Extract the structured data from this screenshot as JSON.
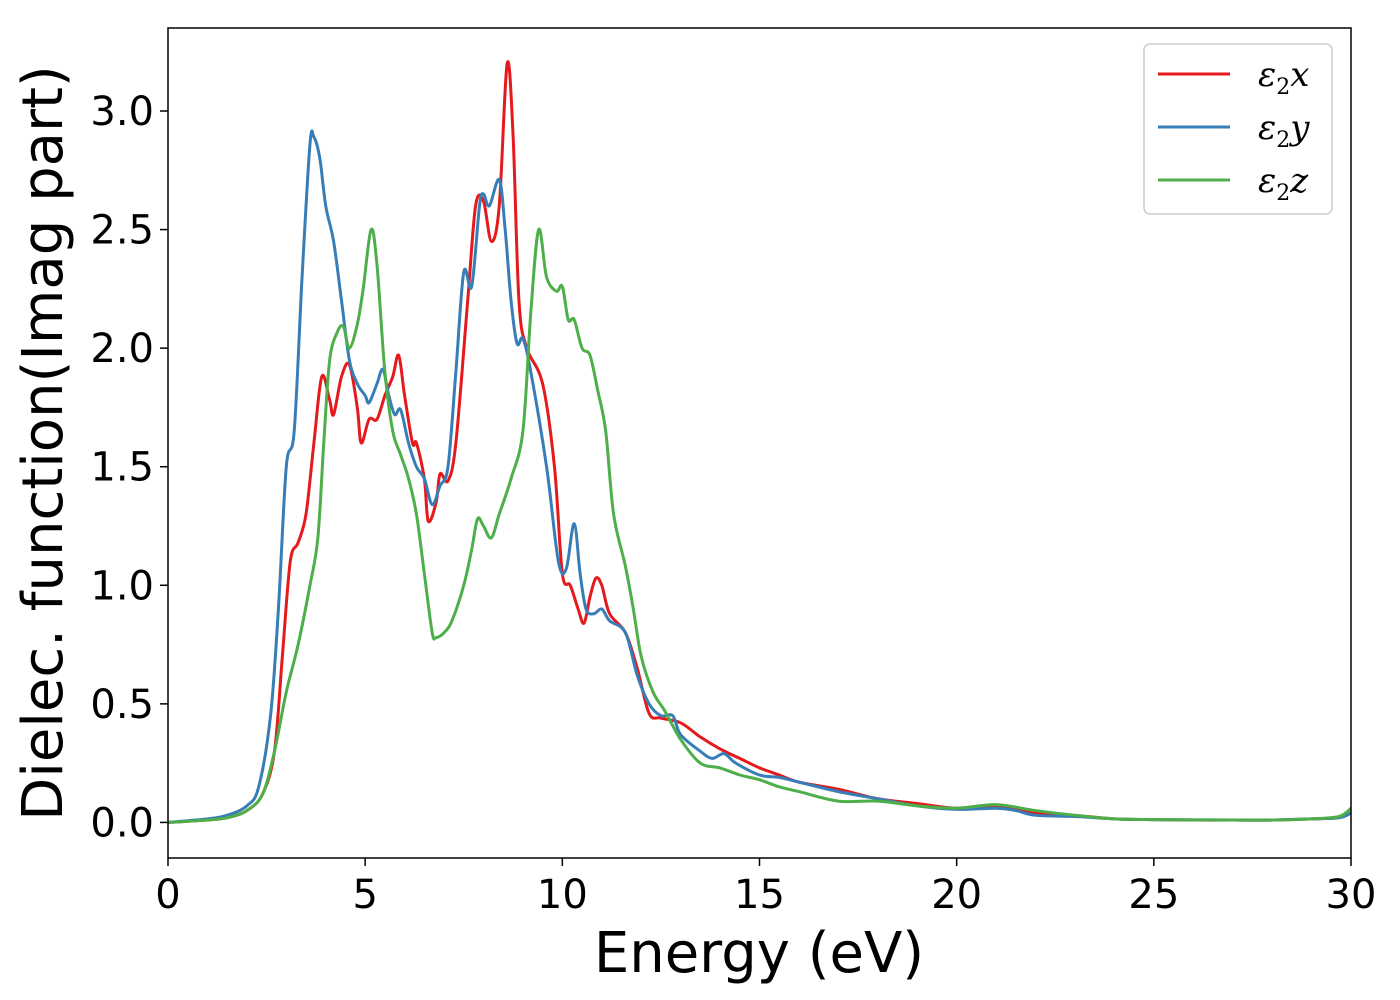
{
  "chart_data": {
    "type": "line",
    "title": "",
    "xlabel": "Energy (eV)",
    "ylabel": "Dielec. function(Imag part)",
    "xlim": [
      0,
      30
    ],
    "ylim": [
      -0.15,
      3.35
    ],
    "xticks": [
      0,
      5,
      10,
      15,
      20,
      25,
      30
    ],
    "xtick_labels": [
      "0",
      "5",
      "10",
      "15",
      "20",
      "25",
      "30"
    ],
    "yticks": [
      0.0,
      0.5,
      1.0,
      1.5,
      2.0,
      2.5,
      3.0
    ],
    "ytick_labels": [
      "0.0",
      "0.5",
      "1.0",
      "1.5",
      "2.0",
      "2.5",
      "3.0"
    ],
    "grid": false,
    "legend": "top-right",
    "series": [
      {
        "name": "ε2x",
        "symbol": "ε",
        "sub": "2",
        "axis": "x",
        "color": "#e41a1c",
        "points": [
          [
            0,
            0
          ],
          [
            1,
            0.01
          ],
          [
            1.5,
            0.02
          ],
          [
            2,
            0.05
          ],
          [
            2.4,
            0.12
          ],
          [
            2.7,
            0.3
          ],
          [
            2.9,
            0.7
          ],
          [
            3.1,
            1.1
          ],
          [
            3.3,
            1.18
          ],
          [
            3.5,
            1.3
          ],
          [
            3.7,
            1.6
          ],
          [
            3.9,
            1.88
          ],
          [
            4.1,
            1.78
          ],
          [
            4.2,
            1.72
          ],
          [
            4.4,
            1.88
          ],
          [
            4.6,
            1.93
          ],
          [
            4.8,
            1.75
          ],
          [
            4.9,
            1.6
          ],
          [
            5.1,
            1.7
          ],
          [
            5.3,
            1.7
          ],
          [
            5.5,
            1.8
          ],
          [
            5.7,
            1.88
          ],
          [
            5.85,
            1.97
          ],
          [
            6.0,
            1.8
          ],
          [
            6.2,
            1.6
          ],
          [
            6.3,
            1.6
          ],
          [
            6.5,
            1.45
          ],
          [
            6.6,
            1.27
          ],
          [
            6.8,
            1.35
          ],
          [
            6.9,
            1.47
          ],
          [
            7.1,
            1.44
          ],
          [
            7.3,
            1.6
          ],
          [
            7.6,
            2.2
          ],
          [
            7.8,
            2.6
          ],
          [
            8.0,
            2.62
          ],
          [
            8.2,
            2.45
          ],
          [
            8.4,
            2.6
          ],
          [
            8.6,
            3.2
          ],
          [
            8.75,
            2.9
          ],
          [
            8.9,
            2.2
          ],
          [
            9.1,
            2.0
          ],
          [
            9.5,
            1.85
          ],
          [
            9.8,
            1.5
          ],
          [
            10.0,
            1.05
          ],
          [
            10.2,
            1.0
          ],
          [
            10.4,
            0.9
          ],
          [
            10.55,
            0.84
          ],
          [
            10.7,
            0.95
          ],
          [
            10.85,
            1.03
          ],
          [
            11.0,
            1.0
          ],
          [
            11.2,
            0.88
          ],
          [
            11.6,
            0.8
          ],
          [
            11.9,
            0.65
          ],
          [
            12.2,
            0.46
          ],
          [
            12.5,
            0.44
          ],
          [
            13,
            0.42
          ],
          [
            13.5,
            0.36
          ],
          [
            14,
            0.31
          ],
          [
            14.5,
            0.27
          ],
          [
            15,
            0.23
          ],
          [
            15.5,
            0.2
          ],
          [
            16,
            0.17
          ],
          [
            17,
            0.14
          ],
          [
            18,
            0.1
          ],
          [
            19,
            0.08
          ],
          [
            20,
            0.06
          ],
          [
            21,
            0.07
          ],
          [
            21.5,
            0.06
          ],
          [
            22,
            0.04
          ],
          [
            23,
            0.03
          ],
          [
            24,
            0.015
          ],
          [
            25,
            0.012
          ],
          [
            26,
            0.01
          ],
          [
            27,
            0.01
          ],
          [
            28,
            0.01
          ],
          [
            29,
            0.015
          ],
          [
            29.7,
            0.02
          ],
          [
            30,
            0.04
          ]
        ]
      },
      {
        "name": "ε2y",
        "symbol": "ε",
        "sub": "2",
        "axis": "y",
        "color": "#377eb8",
        "points": [
          [
            0,
            0
          ],
          [
            1,
            0.015
          ],
          [
            1.5,
            0.03
          ],
          [
            2,
            0.07
          ],
          [
            2.3,
            0.15
          ],
          [
            2.6,
            0.45
          ],
          [
            2.8,
            0.9
          ],
          [
            3.0,
            1.5
          ],
          [
            3.2,
            1.65
          ],
          [
            3.4,
            2.3
          ],
          [
            3.6,
            2.86
          ],
          [
            3.7,
            2.89
          ],
          [
            3.85,
            2.8
          ],
          [
            4.0,
            2.6
          ],
          [
            4.2,
            2.45
          ],
          [
            4.4,
            2.2
          ],
          [
            4.6,
            1.95
          ],
          [
            4.8,
            1.85
          ],
          [
            5.0,
            1.8
          ],
          [
            5.1,
            1.77
          ],
          [
            5.3,
            1.85
          ],
          [
            5.45,
            1.91
          ],
          [
            5.6,
            1.8
          ],
          [
            5.75,
            1.72
          ],
          [
            5.9,
            1.74
          ],
          [
            6.1,
            1.6
          ],
          [
            6.3,
            1.5
          ],
          [
            6.5,
            1.45
          ],
          [
            6.7,
            1.34
          ],
          [
            6.9,
            1.42
          ],
          [
            7.1,
            1.5
          ],
          [
            7.3,
            1.9
          ],
          [
            7.5,
            2.32
          ],
          [
            7.7,
            2.26
          ],
          [
            7.9,
            2.6
          ],
          [
            8.0,
            2.65
          ],
          [
            8.15,
            2.6
          ],
          [
            8.4,
            2.71
          ],
          [
            8.55,
            2.5
          ],
          [
            8.7,
            2.2
          ],
          [
            8.85,
            2.02
          ],
          [
            9.0,
            2.04
          ],
          [
            9.2,
            1.9
          ],
          [
            9.6,
            1.5
          ],
          [
            9.9,
            1.1
          ],
          [
            10.1,
            1.07
          ],
          [
            10.3,
            1.26
          ],
          [
            10.45,
            1.05
          ],
          [
            10.6,
            0.9
          ],
          [
            10.8,
            0.88
          ],
          [
            11.0,
            0.9
          ],
          [
            11.2,
            0.85
          ],
          [
            11.6,
            0.8
          ],
          [
            11.9,
            0.62
          ],
          [
            12.2,
            0.5
          ],
          [
            12.5,
            0.45
          ],
          [
            12.8,
            0.45
          ],
          [
            13,
            0.37
          ],
          [
            13.5,
            0.3
          ],
          [
            13.8,
            0.27
          ],
          [
            14.1,
            0.29
          ],
          [
            14.4,
            0.25
          ],
          [
            15,
            0.2
          ],
          [
            15.5,
            0.19
          ],
          [
            16,
            0.17
          ],
          [
            17,
            0.13
          ],
          [
            18,
            0.1
          ],
          [
            19,
            0.07
          ],
          [
            20,
            0.055
          ],
          [
            21,
            0.06
          ],
          [
            21.5,
            0.05
          ],
          [
            22,
            0.03
          ],
          [
            23,
            0.025
          ],
          [
            24,
            0.015
          ],
          [
            25,
            0.012
          ],
          [
            27,
            0.01
          ],
          [
            28,
            0.01
          ],
          [
            29,
            0.015
          ],
          [
            29.7,
            0.02
          ],
          [
            30,
            0.04
          ]
        ]
      },
      {
        "name": "ε2z",
        "symbol": "ε",
        "sub": "2",
        "axis": "z",
        "color": "#4daf4a",
        "points": [
          [
            0,
            0
          ],
          [
            1,
            0.01
          ],
          [
            1.5,
            0.02
          ],
          [
            2,
            0.05
          ],
          [
            2.4,
            0.12
          ],
          [
            2.7,
            0.3
          ],
          [
            3.0,
            0.55
          ],
          [
            3.3,
            0.75
          ],
          [
            3.6,
            1.0
          ],
          [
            3.8,
            1.2
          ],
          [
            3.95,
            1.6
          ],
          [
            4.1,
            1.95
          ],
          [
            4.3,
            2.07
          ],
          [
            4.45,
            2.09
          ],
          [
            4.6,
            2.0
          ],
          [
            4.8,
            2.1
          ],
          [
            4.95,
            2.25
          ],
          [
            5.15,
            2.5
          ],
          [
            5.3,
            2.35
          ],
          [
            5.5,
            1.9
          ],
          [
            5.7,
            1.65
          ],
          [
            5.9,
            1.55
          ],
          [
            6.1,
            1.45
          ],
          [
            6.3,
            1.3
          ],
          [
            6.5,
            1.05
          ],
          [
            6.7,
            0.8
          ],
          [
            6.8,
            0.78
          ],
          [
            7.0,
            0.8
          ],
          [
            7.2,
            0.85
          ],
          [
            7.5,
            1.0
          ],
          [
            7.7,
            1.15
          ],
          [
            7.85,
            1.28
          ],
          [
            8.0,
            1.25
          ],
          [
            8.2,
            1.2
          ],
          [
            8.4,
            1.3
          ],
          [
            8.7,
            1.45
          ],
          [
            9.0,
            1.65
          ],
          [
            9.2,
            2.15
          ],
          [
            9.4,
            2.5
          ],
          [
            9.6,
            2.3
          ],
          [
            9.85,
            2.24
          ],
          [
            10.0,
            2.26
          ],
          [
            10.15,
            2.12
          ],
          [
            10.3,
            2.12
          ],
          [
            10.5,
            2.0
          ],
          [
            10.7,
            1.97
          ],
          [
            10.9,
            1.82
          ],
          [
            11.1,
            1.65
          ],
          [
            11.3,
            1.3
          ],
          [
            11.6,
            1.08
          ],
          [
            11.8,
            0.9
          ],
          [
            12.0,
            0.7
          ],
          [
            12.3,
            0.55
          ],
          [
            12.6,
            0.47
          ],
          [
            13,
            0.35
          ],
          [
            13.5,
            0.25
          ],
          [
            14,
            0.23
          ],
          [
            14.5,
            0.2
          ],
          [
            15,
            0.18
          ],
          [
            15.5,
            0.15
          ],
          [
            16,
            0.13
          ],
          [
            17,
            0.09
          ],
          [
            18,
            0.09
          ],
          [
            19,
            0.07
          ],
          [
            20,
            0.06
          ],
          [
            21,
            0.075
          ],
          [
            22,
            0.05
          ],
          [
            23,
            0.03
          ],
          [
            24,
            0.015
          ],
          [
            25,
            0.012
          ],
          [
            27,
            0.01
          ],
          [
            28,
            0.01
          ],
          [
            29,
            0.015
          ],
          [
            29.7,
            0.025
          ],
          [
            30,
            0.06
          ]
        ]
      }
    ]
  }
}
